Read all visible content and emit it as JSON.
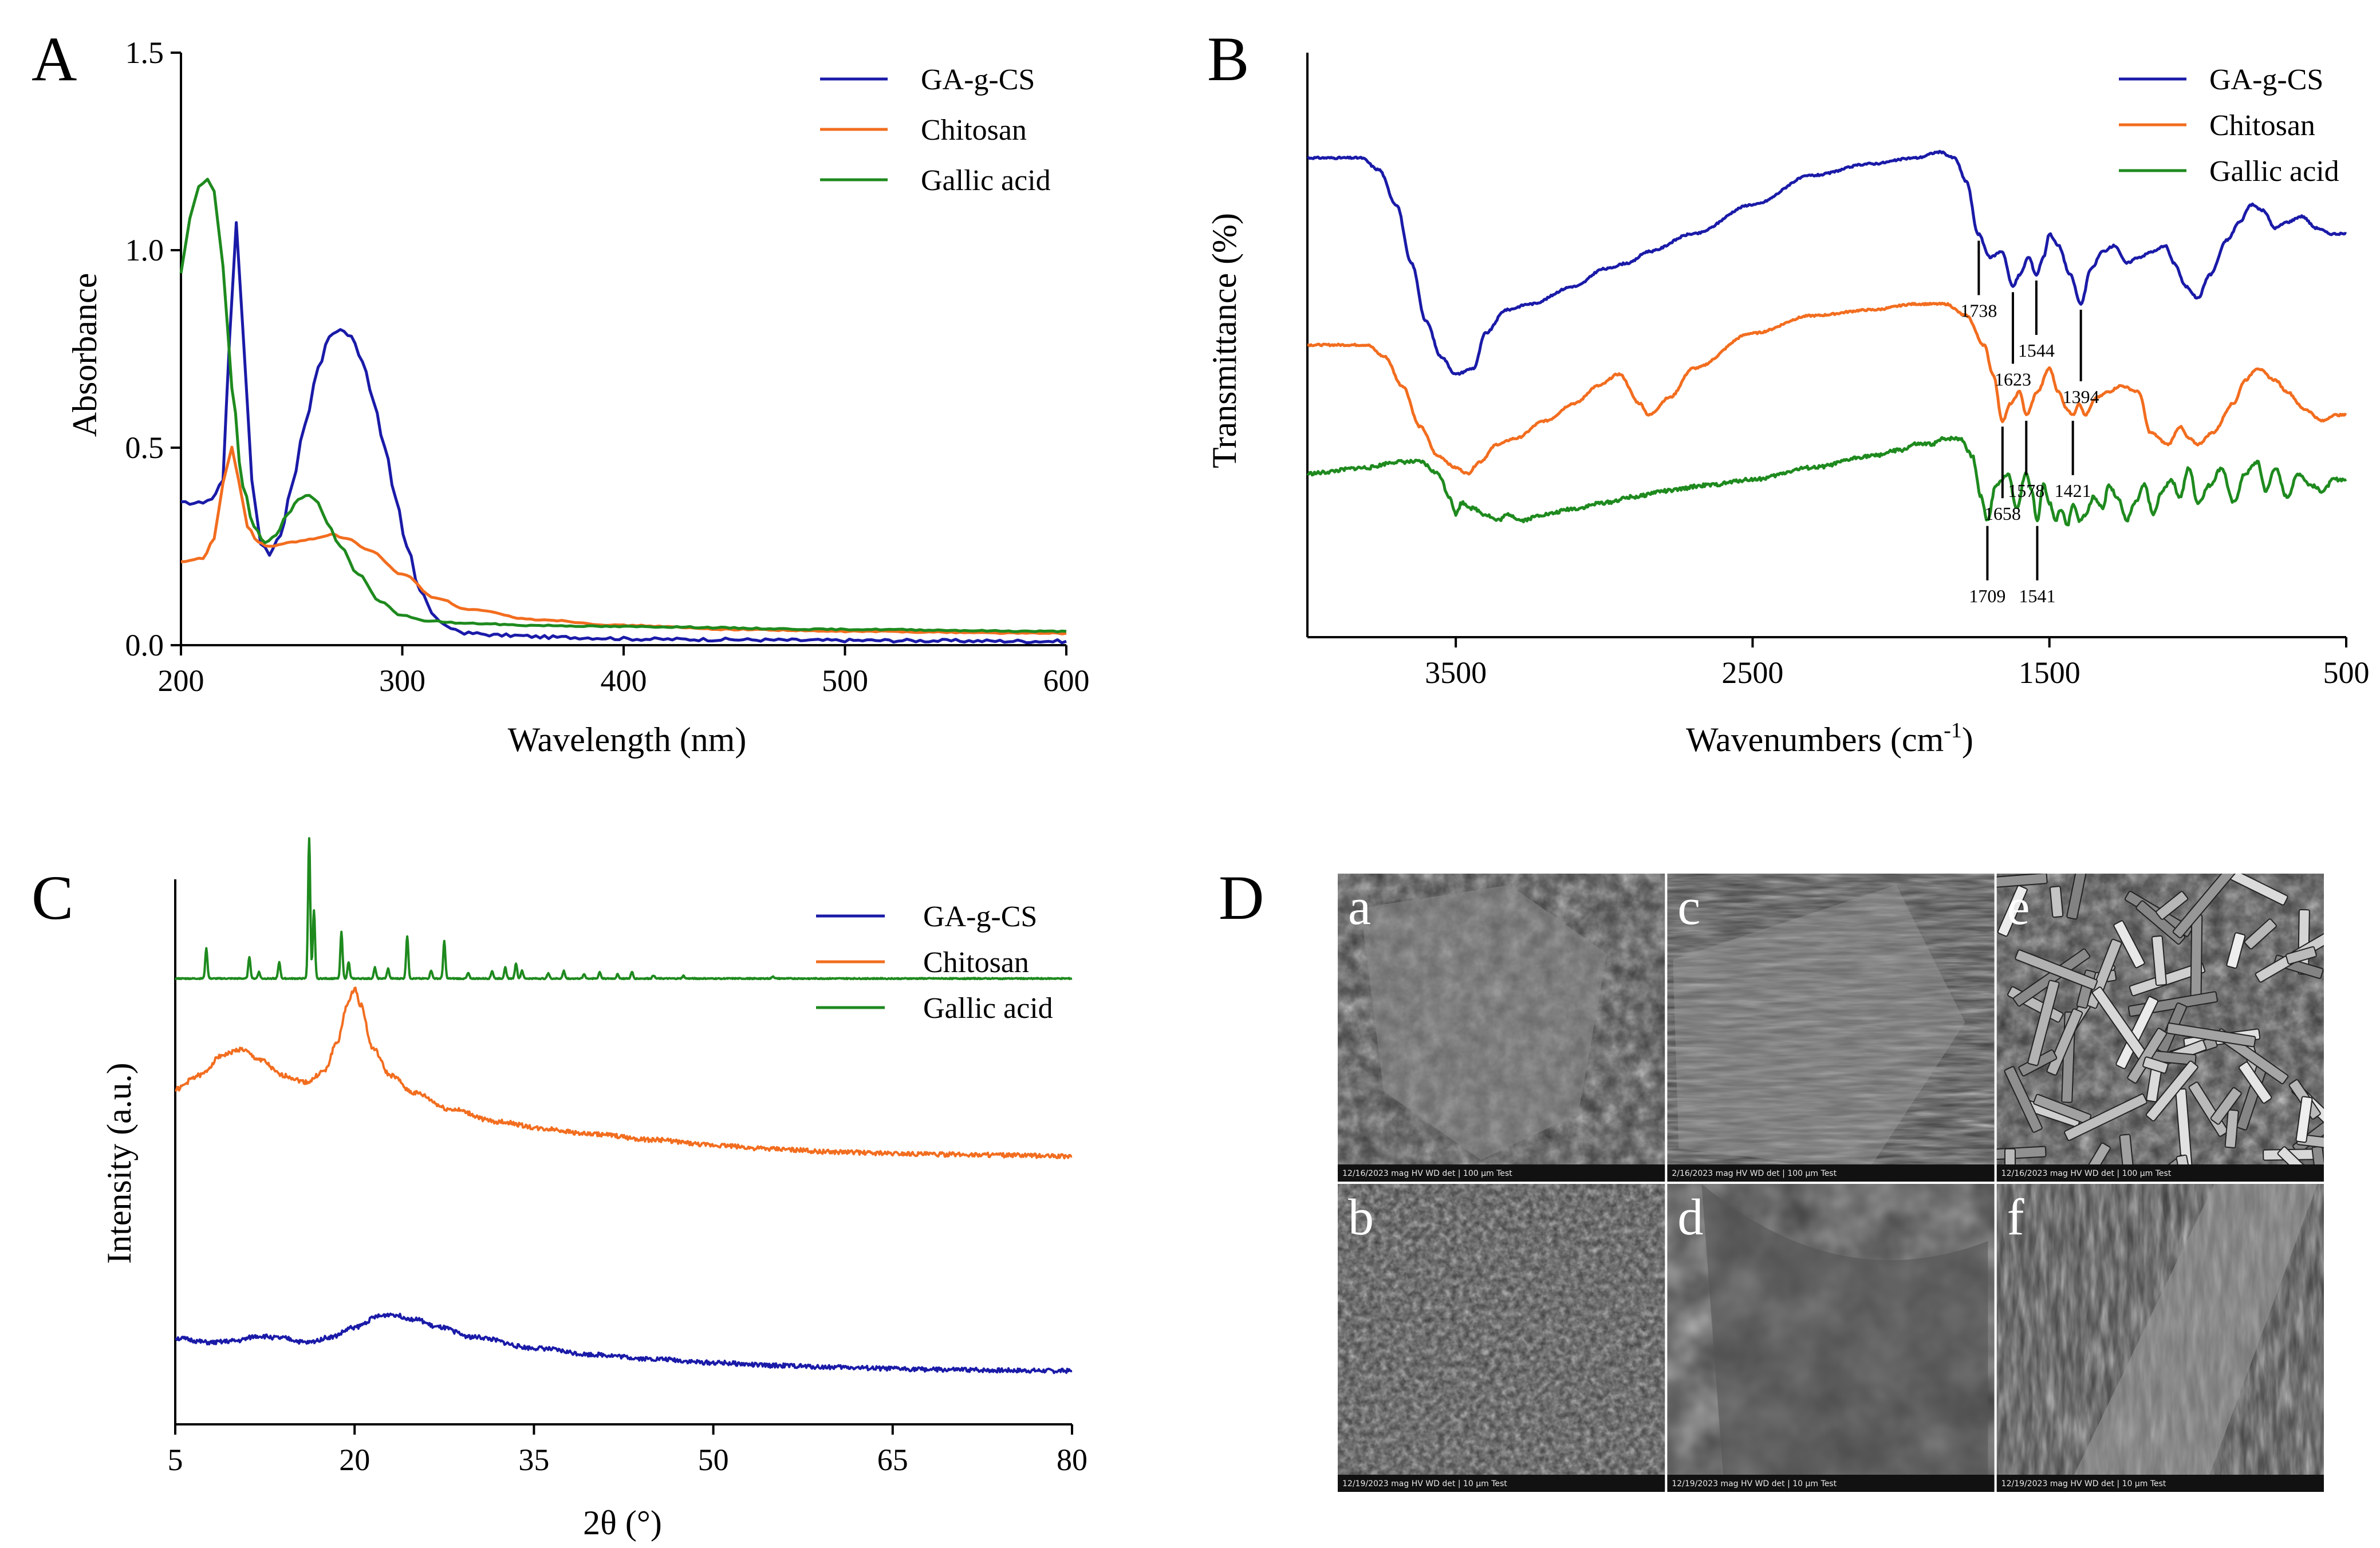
{
  "panels": {
    "A": {
      "letter": "A",
      "chart_data": {
        "type": "line",
        "xlabel": "Wavelength (nm)",
        "ylabel": "Absorbance",
        "xlim": [
          200,
          600
        ],
        "ylim": [
          0,
          1.5
        ],
        "xticks": [
          "200",
          "300",
          "400",
          "500",
          "600"
        ],
        "yticks": [
          "0.0",
          "0.5",
          "1.0",
          "1.5"
        ],
        "legend_position": "top-right",
        "series": [
          {
            "name": "GA-g-CS",
            "color": "#1a1aa8",
            "x": [
              200,
              208,
              214,
              219,
              222,
              225,
              228,
              232,
              236,
              240,
              245,
              250,
              256,
              262,
              267,
              272,
              277,
              282,
              287,
              292,
              297,
              302,
              308,
              315,
              320,
              330,
              345,
              370,
              420,
              500,
              600
            ],
            "y": [
              0.36,
              0.36,
              0.37,
              0.42,
              0.78,
              1.07,
              0.8,
              0.42,
              0.26,
              0.23,
              0.28,
              0.4,
              0.56,
              0.7,
              0.78,
              0.8,
              0.78,
              0.72,
              0.62,
              0.5,
              0.37,
              0.25,
              0.14,
              0.07,
              0.045,
              0.03,
              0.025,
              0.02,
              0.015,
              0.012,
              0.01
            ]
          },
          {
            "name": "Chitosan",
            "color": "#f26d1f",
            "x": [
              200,
              210,
              215,
              219,
              223,
              226,
              230,
              235,
              240,
              250,
              260,
              268,
              275,
              285,
              300,
              315,
              330,
              360,
              400,
              450,
              500,
              600
            ],
            "y": [
              0.21,
              0.22,
              0.27,
              0.41,
              0.5,
              0.42,
              0.3,
              0.26,
              0.25,
              0.26,
              0.27,
              0.28,
              0.27,
              0.24,
              0.18,
              0.12,
              0.09,
              0.065,
              0.05,
              0.04,
              0.035,
              0.03
            ]
          },
          {
            "name": "Gallic acid",
            "color": "#1e8a1e",
            "x": [
              200,
              204,
              208,
              212,
              215,
              219,
              223,
              228,
              233,
              238,
              243,
              248,
              253,
              258,
              262,
              266,
              272,
              280,
              290,
              300,
              310,
              330,
              360,
              400,
              500,
              600
            ],
            "y": [
              0.94,
              1.08,
              1.16,
              1.18,
              1.15,
              0.96,
              0.65,
              0.4,
              0.3,
              0.26,
              0.28,
              0.33,
              0.37,
              0.38,
              0.36,
              0.31,
              0.25,
              0.18,
              0.11,
              0.075,
              0.062,
              0.055,
              0.05,
              0.047,
              0.04,
              0.035
            ]
          }
        ]
      }
    },
    "B": {
      "letter": "B",
      "chart_data": {
        "type": "line",
        "xlabel": "Wavenumbers (cm",
        "xlabel_sup": "-1",
        "xlabel_end": ")",
        "ylabel": "Transmittance (%)",
        "xlim": [
          4000,
          500
        ],
        "ylim": [
          0,
          1
        ],
        "xticks": [
          "3500",
          "2500",
          "1500",
          "500"
        ],
        "xtick_values": [
          3500,
          2500,
          1500,
          500
        ],
        "legend_position": "top-right",
        "series": [
          {
            "name": "GA-g-CS",
            "color": "#1a1aa8",
            "x": [
              4000,
              3820,
              3760,
              3700,
              3650,
              3600,
              3550,
              3500,
              3440,
              3400,
              3330,
              3250,
              3100,
              3000,
              2920,
              2850,
              2700,
              2500,
              2300,
              2100,
              1950,
              1870,
              1820,
              1780,
              1740,
              1700,
              1660,
              1623,
              1600,
              1570,
              1544,
              1520,
              1500,
              1470,
              1430,
              1394,
              1360,
              1320,
              1280,
              1240,
              1200,
              1150,
              1110,
              1080,
              1040,
              1000,
              960,
              900,
              860,
              820,
              780,
              740,
              700,
              650,
              600,
              550,
              500
            ],
            "y": [
              0.82,
              0.82,
              0.8,
              0.74,
              0.64,
              0.54,
              0.48,
              0.45,
              0.46,
              0.52,
              0.56,
              0.57,
              0.6,
              0.63,
              0.64,
              0.66,
              0.69,
              0.74,
              0.79,
              0.81,
              0.82,
              0.83,
              0.82,
              0.78,
              0.69,
              0.65,
              0.66,
              0.6,
              0.62,
              0.65,
              0.62,
              0.65,
              0.69,
              0.67,
              0.62,
              0.57,
              0.63,
              0.66,
              0.67,
              0.64,
              0.65,
              0.66,
              0.67,
              0.64,
              0.6,
              0.58,
              0.62,
              0.68,
              0.71,
              0.74,
              0.73,
              0.7,
              0.71,
              0.72,
              0.7,
              0.69,
              0.69
            ]
          },
          {
            "name": "Chitosan",
            "color": "#f26d1f",
            "x": [
              4000,
              3800,
              3740,
              3680,
              3620,
              3560,
              3500,
              3460,
              3420,
              3360,
              3300,
              3200,
              3100,
              3020,
              2950,
              2880,
              2850,
              2780,
              2700,
              2500,
              2300,
              2100,
              1950,
              1850,
              1780,
              1720,
              1690,
              1658,
              1630,
              1600,
              1578,
              1540,
              1500,
              1470,
              1440,
              1421,
              1400,
              1380,
              1340,
              1300,
              1260,
              1200,
              1160,
              1100,
              1060,
              1030,
              1000,
              950,
              880,
              840,
              800,
              740,
              700,
              640,
              580,
              540,
              500
            ],
            "y": [
              0.5,
              0.5,
              0.48,
              0.43,
              0.36,
              0.31,
              0.29,
              0.28,
              0.3,
              0.33,
              0.34,
              0.37,
              0.4,
              0.43,
              0.45,
              0.4,
              0.38,
              0.41,
              0.46,
              0.52,
              0.55,
              0.56,
              0.57,
              0.57,
              0.55,
              0.5,
              0.45,
              0.37,
              0.4,
              0.42,
              0.38,
              0.42,
              0.46,
              0.42,
              0.39,
              0.38,
              0.4,
              0.38,
              0.41,
              0.42,
              0.43,
              0.42,
              0.35,
              0.33,
              0.36,
              0.34,
              0.33,
              0.35,
              0.4,
              0.44,
              0.46,
              0.44,
              0.42,
              0.39,
              0.37,
              0.38,
              0.38
            ]
          },
          {
            "name": "Gallic acid",
            "color": "#1e8a1e",
            "x": [
              4000,
              3800,
              3700,
              3620,
              3560,
              3520,
              3500,
              3480,
              3440,
              3400,
              3360,
              3320,
              3280,
              3200,
              3100,
              3000,
              2900,
              2800,
              2650,
              2500,
              2300,
              2100,
              2000,
              1950,
              1900,
              1850,
              1800,
              1760,
              1730,
              1709,
              1680,
              1640,
              1610,
              1580,
              1560,
              1541,
              1520,
              1500,
              1480,
              1460,
              1440,
              1420,
              1400,
              1380,
              1350,
              1320,
              1300,
              1270,
              1240,
              1210,
              1180,
              1150,
              1120,
              1090,
              1060,
              1030,
              1000,
              960,
              920,
              880,
              840,
              800,
              770,
              740,
              700,
              660,
              620,
              580,
              540,
              500
            ],
            "y": [
              0.28,
              0.29,
              0.3,
              0.3,
              0.28,
              0.24,
              0.21,
              0.23,
              0.22,
              0.21,
              0.2,
              0.21,
              0.2,
              0.21,
              0.22,
              0.23,
              0.24,
              0.25,
              0.26,
              0.27,
              0.29,
              0.31,
              0.32,
              0.33,
              0.33,
              0.34,
              0.34,
              0.31,
              0.24,
              0.2,
              0.26,
              0.28,
              0.22,
              0.28,
              0.25,
              0.2,
              0.26,
              0.23,
              0.2,
              0.22,
              0.19,
              0.23,
              0.2,
              0.21,
              0.24,
              0.22,
              0.26,
              0.24,
              0.2,
              0.23,
              0.26,
              0.21,
              0.25,
              0.27,
              0.24,
              0.29,
              0.23,
              0.26,
              0.29,
              0.23,
              0.28,
              0.3,
              0.25,
              0.29,
              0.24,
              0.28,
              0.26,
              0.25,
              0.27,
              0.27
            ]
          }
        ],
        "annotations": [
          {
            "label": "1738",
            "x": 1738,
            "series": 0,
            "dir": "down"
          },
          {
            "label": "1623",
            "x": 1623,
            "series": 0,
            "dir": "down"
          },
          {
            "label": "1544",
            "x": 1544,
            "series": 0,
            "dir": "down"
          },
          {
            "label": "1394",
            "x": 1394,
            "series": 0,
            "dir": "down"
          },
          {
            "label": "1658",
            "x": 1658,
            "series": 1,
            "dir": "down"
          },
          {
            "label": "1578",
            "x": 1578,
            "series": 1,
            "dir": "down"
          },
          {
            "label": "1421",
            "x": 1421,
            "series": 1,
            "dir": "down"
          },
          {
            "label": "1709",
            "x": 1709,
            "series": 2,
            "dir": "down"
          },
          {
            "label": "1541",
            "x": 1541,
            "series": 2,
            "dir": "down"
          }
        ]
      }
    },
    "C": {
      "letter": "C",
      "chart_data": {
        "type": "line",
        "xlabel": "2θ (°)",
        "ylabel": "Intensity (a.u.)",
        "xlim": [
          5,
          80
        ],
        "ylim": [
          0,
          1
        ],
        "xticks": [
          "5",
          "20",
          "35",
          "50",
          "65",
          "80"
        ],
        "xtick_values": [
          5,
          20,
          35,
          50,
          65,
          80
        ],
        "legend_position": "top-right",
        "series": [
          {
            "name": "GA-g-CS",
            "color": "#1a1aa8",
            "x": [
              5,
              8,
              10,
              12,
              14,
              16,
              18,
              20,
              22,
              23,
              25,
              27,
              30,
              35,
              40,
              45,
              50,
              55,
              60,
              65,
              70,
              75,
              80
            ],
            "y": [
              0.158,
              0.15,
              0.153,
              0.162,
              0.158,
              0.15,
              0.16,
              0.178,
              0.198,
              0.202,
              0.193,
              0.178,
              0.16,
              0.14,
              0.128,
              0.12,
              0.113,
              0.108,
              0.105,
              0.102,
              0.1,
              0.099,
              0.098
            ]
          },
          {
            "name": "Chitosan",
            "color": "#f26d1f",
            "x": [
              5,
              7,
              9,
              10.5,
              12,
              14,
              16,
              17.5,
              18.5,
              19.5,
              20,
              20.5,
              21.5,
              23,
              25,
              28,
              32,
              36,
              40,
              45,
              50,
              55,
              60,
              65,
              70,
              80
            ],
            "y": [
              0.615,
              0.64,
              0.678,
              0.688,
              0.67,
              0.64,
              0.628,
              0.648,
              0.7,
              0.775,
              0.8,
              0.77,
              0.69,
              0.64,
              0.608,
              0.578,
              0.555,
              0.542,
              0.532,
              0.522,
              0.512,
              0.505,
              0.5,
              0.497,
              0.495,
              0.492
            ]
          }
        ],
        "gallic_acid": {
          "name": "Gallic acid",
          "color": "#1e8a1e",
          "baseline": 0.818,
          "peaks": [
            {
              "x": 7.6,
              "h": 0.055
            },
            {
              "x": 11.2,
              "h": 0.04
            },
            {
              "x": 12.0,
              "h": 0.012
            },
            {
              "x": 13.7,
              "h": 0.03
            },
            {
              "x": 16.2,
              "h": 0.258
            },
            {
              "x": 16.6,
              "h": 0.125
            },
            {
              "x": 18.9,
              "h": 0.085
            },
            {
              "x": 19.5,
              "h": 0.03
            },
            {
              "x": 21.7,
              "h": 0.02
            },
            {
              "x": 22.8,
              "h": 0.018
            },
            {
              "x": 24.4,
              "h": 0.078
            },
            {
              "x": 26.4,
              "h": 0.015
            },
            {
              "x": 27.5,
              "h": 0.068
            },
            {
              "x": 29.5,
              "h": 0.01
            },
            {
              "x": 31.5,
              "h": 0.014
            },
            {
              "x": 32.6,
              "h": 0.02
            },
            {
              "x": 33.5,
              "h": 0.028
            },
            {
              "x": 34.0,
              "h": 0.015
            },
            {
              "x": 36.2,
              "h": 0.01
            },
            {
              "x": 37.5,
              "h": 0.014
            },
            {
              "x": 39.2,
              "h": 0.008
            },
            {
              "x": 40.5,
              "h": 0.012
            },
            {
              "x": 42.0,
              "h": 0.008
            },
            {
              "x": 43.2,
              "h": 0.012
            },
            {
              "x": 45.0,
              "h": 0.006
            },
            {
              "x": 47.5,
              "h": 0.005
            },
            {
              "x": 55.0,
              "h": 0.004
            }
          ]
        }
      }
    },
    "D": {
      "letter": "D",
      "tiles": [
        {
          "label": "a",
          "texture": "flake",
          "info": "12/16/2023  mag  HV  WD  det   |   100 µm   Test"
        },
        {
          "label": "c",
          "texture": "ridged",
          "info": "2/16/2023  mag  HV  WD  det   |   100 µm   Test"
        },
        {
          "label": "e",
          "texture": "rods",
          "info": "12/16/2023  mag  HV  WD  det   |   100 µm   Test"
        },
        {
          "label": "b",
          "texture": "porous",
          "info": "12/19/2023  mag  HV  WD  det   |   10 µm   Test"
        },
        {
          "label": "d",
          "texture": "smooth",
          "info": "12/19/2023  mag  HV  WD  det   |   10 µm   Test"
        },
        {
          "label": "f",
          "texture": "fiber",
          "info": "12/19/2023  mag  HV  WD  det   |   10 µm   Test"
        }
      ]
    }
  }
}
